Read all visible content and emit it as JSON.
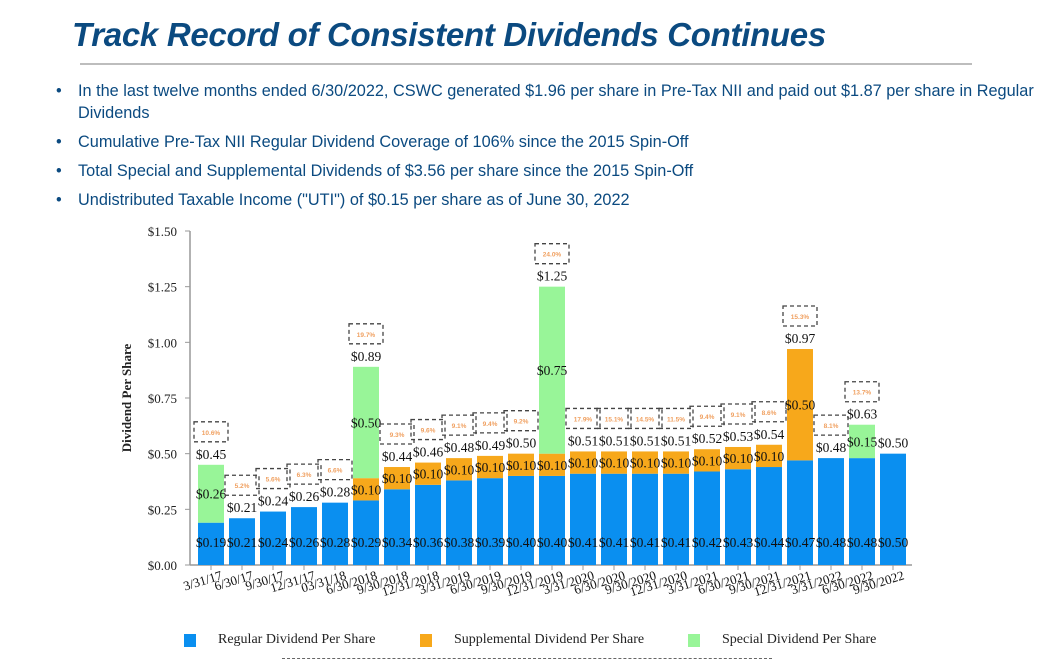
{
  "title": "Track Record of Consistent Dividends Continues",
  "bullet_glyph": "•",
  "bullets": [
    "In the last twelve months ended 6/30/2022, CSWC generated $1.96 per share in Pre-Tax NII and paid out $1.87 per share in Regular Dividends",
    "Cumulative Pre-Tax NII Regular Dividend Coverage of 106% since the 2015 Spin-Off",
    "Total Special and Supplemental Dividends of $3.56 per share since the 2015 Spin-Off",
    "Undistributed Taxable Income (\"UTI\") of $0.15 per share as of June 30, 2022"
  ],
  "chart_data": {
    "type": "bar",
    "stacked": true,
    "title": "",
    "xlabel": "",
    "ylabel": "Dividend Per Share",
    "ylim": [
      0,
      1.5
    ],
    "yticks": [
      0,
      0.25,
      0.5,
      0.75,
      1.0,
      1.25,
      1.5
    ],
    "ytick_labels": [
      "$0.00",
      "$0.25",
      "$0.50",
      "$0.75",
      "$1.00",
      "$1.25",
      "$1.50"
    ],
    "grid": false,
    "legend_position": "bottom",
    "categories": [
      "3/31/17",
      "6/30/17",
      "9/30/17",
      "12/31/17",
      "03/31/18",
      "6/30/2018",
      "9/30/2018",
      "12/31/2018",
      "3/31/2019",
      "6/30/2019",
      "9/30/2019",
      "12/31/2019",
      "3/31/2020",
      "6/30/2020",
      "9/30/2020",
      "12/31/2020",
      "3/31/2021",
      "6/30/2021",
      "9/30/2021",
      "12/31/2021",
      "3/31/2022",
      "6/30/2022",
      "9/30/2022"
    ],
    "series": [
      {
        "name": "Regular Dividend Per Share",
        "color": "#0a8ff0",
        "values": [
          0.19,
          0.21,
          0.24,
          0.26,
          0.28,
          0.29,
          0.34,
          0.36,
          0.38,
          0.39,
          0.4,
          0.4,
          0.41,
          0.41,
          0.41,
          0.41,
          0.42,
          0.43,
          0.44,
          0.47,
          0.48,
          0.48,
          0.5
        ]
      },
      {
        "name": "Supplemental Dividend Per Share",
        "color": "#f7a81b",
        "values": [
          0,
          0,
          0,
          0,
          0,
          0.1,
          0.1,
          0.1,
          0.1,
          0.1,
          0.1,
          0.1,
          0.1,
          0.1,
          0.1,
          0.1,
          0.1,
          0.1,
          0.1,
          0.5,
          0,
          0,
          0
        ]
      },
      {
        "name": "Special Dividend Per Share",
        "color": "#98f598",
        "values": [
          0.26,
          0,
          0,
          0,
          0,
          0.5,
          0,
          0,
          0,
          0,
          0,
          0.75,
          0,
          0,
          0,
          0,
          0,
          0,
          0,
          0,
          0,
          0.15,
          0
        ]
      }
    ],
    "totals": [
      0.45,
      0.21,
      0.24,
      0.26,
      0.28,
      0.89,
      0.44,
      0.46,
      0.48,
      0.49,
      0.5,
      1.25,
      0.51,
      0.51,
      0.51,
      0.51,
      0.52,
      0.53,
      0.54,
      0.97,
      0.48,
      0.63,
      0.5
    ],
    "annotations": [
      "10.6%",
      "5.2%",
      "5.6%",
      "6.3%",
      "6.6%",
      "19.7%",
      "9.3%",
      "9.6%",
      "9.1%",
      "9.4%",
      "9.2%",
      "24.0%",
      "17.9%",
      "15.1%",
      "14.5%",
      "11.5%",
      "9.4%",
      "9.1%",
      "8.6%",
      "15.3%",
      "8.1%",
      "13.7%",
      ""
    ],
    "annotation_color": "#f0a060"
  }
}
